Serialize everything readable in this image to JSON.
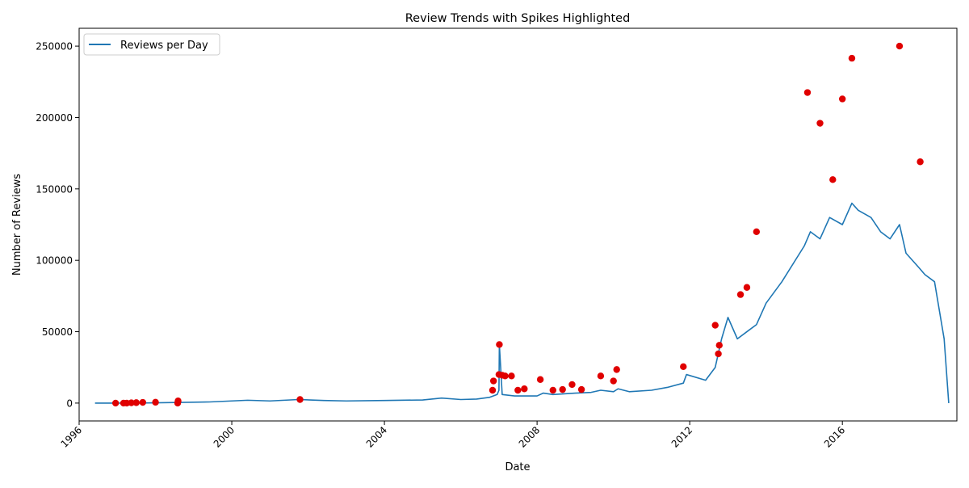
{
  "chart_data": {
    "type": "line",
    "title": "Review Trends with Spikes Highlighted",
    "xlabel": "Date",
    "ylabel": "Number of Reviews",
    "x_scale": "date",
    "xlim": [
      "1996-01-01",
      "2019-01-01"
    ],
    "ylim": [
      -12500,
      262500
    ],
    "x_ticks": [
      "1996",
      "2000",
      "2004",
      "2008",
      "2012",
      "2016"
    ],
    "y_ticks": [
      0,
      50000,
      100000,
      150000,
      200000,
      250000
    ],
    "grid": false,
    "legend": {
      "position": "top-left",
      "entries": [
        "Reviews per Day"
      ]
    },
    "series": [
      {
        "name": "Reviews per Day",
        "kind": "line",
        "color": "#1f77b4",
        "x": [
          "1996-06-01",
          "1996-12-01",
          "1997-06-01",
          "1998-01-01",
          "1998-09-01",
          "1999-06-01",
          "2000-01-01",
          "2000-06-01",
          "2001-01-01",
          "2001-10-01",
          "2002-06-01",
          "2003-01-01",
          "2004-01-01",
          "2005-01-01",
          "2005-07-01",
          "2006-01-01",
          "2006-06-01",
          "2006-10-01",
          "2006-12-15",
          "2007-01-01",
          "2007-01-05",
          "2007-02-01",
          "2007-06-01",
          "2008-01-01",
          "2008-03-01",
          "2008-06-01",
          "2009-01-01",
          "2009-06-01",
          "2009-09-01",
          "2010-01-01",
          "2010-02-15",
          "2010-06-01",
          "2011-01-01",
          "2011-06-01",
          "2011-11-01",
          "2011-12-01",
          "2012-06-01",
          "2012-09-01",
          "2012-11-01",
          "2013-01-01",
          "2013-04-01",
          "2013-07-01",
          "2013-10-01",
          "2014-01-01",
          "2014-06-01",
          "2015-01-01",
          "2015-03-01",
          "2015-06-01",
          "2015-09-01",
          "2016-01-01",
          "2016-04-01",
          "2016-06-01",
          "2016-10-01",
          "2017-01-01",
          "2017-04-01",
          "2017-07-01",
          "2017-09-01",
          "2018-01-01",
          "2018-03-01",
          "2018-06-01",
          "2018-09-01",
          "2018-10-15"
        ],
        "y": [
          0,
          0,
          0,
          200,
          500,
          800,
          1500,
          2000,
          1500,
          2500,
          1800,
          1500,
          1800,
          2200,
          3500,
          2500,
          2800,
          4000,
          6000,
          9000,
          41000,
          6000,
          5000,
          5000,
          7000,
          6000,
          7000,
          7500,
          9000,
          8000,
          10000,
          8000,
          9000,
          11000,
          14000,
          20000,
          16000,
          25000,
          45000,
          60000,
          45000,
          50000,
          55000,
          70000,
          85000,
          110000,
          120000,
          115000,
          130000,
          125000,
          140000,
          135000,
          130000,
          120000,
          115000,
          125000,
          105000,
          95000,
          90000,
          85000,
          45000,
          0
        ]
      },
      {
        "name": "",
        "kind": "scatter",
        "color": "#e00000",
        "x": [
          "1996-12-15",
          "1997-03-01",
          "1997-04-01",
          "1997-05-15",
          "1997-07-01",
          "1997-09-01",
          "1998-01-01",
          "1998-08-01",
          "1998-08-05",
          "2001-10-15",
          "2006-11-01",
          "2006-11-10",
          "2007-01-01",
          "2007-01-05",
          "2007-02-01",
          "2007-03-01",
          "2007-05-01",
          "2007-07-01",
          "2007-09-01",
          "2008-02-01",
          "2008-06-01",
          "2008-09-01",
          "2008-12-01",
          "2009-03-01",
          "2009-09-01",
          "2010-01-01",
          "2010-02-01",
          "2011-11-01",
          "2012-09-01",
          "2012-10-01",
          "2012-10-10",
          "2013-05-01",
          "2013-07-01",
          "2013-10-01",
          "2015-02-01",
          "2015-06-01",
          "2015-10-01",
          "2016-01-01",
          "2016-04-01",
          "2017-07-01",
          "2018-01-15"
        ],
        "y": [
          0,
          0,
          0,
          200,
          300,
          500,
          600,
          0,
          1500,
          2500,
          9000,
          15500,
          20000,
          41000,
          19500,
          19000,
          19000,
          9000,
          10000,
          16500,
          9000,
          9500,
          13000,
          9500,
          19000,
          15500,
          23500,
          25500,
          54500,
          34500,
          40500,
          76000,
          81000,
          120000,
          217500,
          196000,
          156500,
          213000,
          241500,
          250000,
          169000
        ]
      }
    ]
  }
}
